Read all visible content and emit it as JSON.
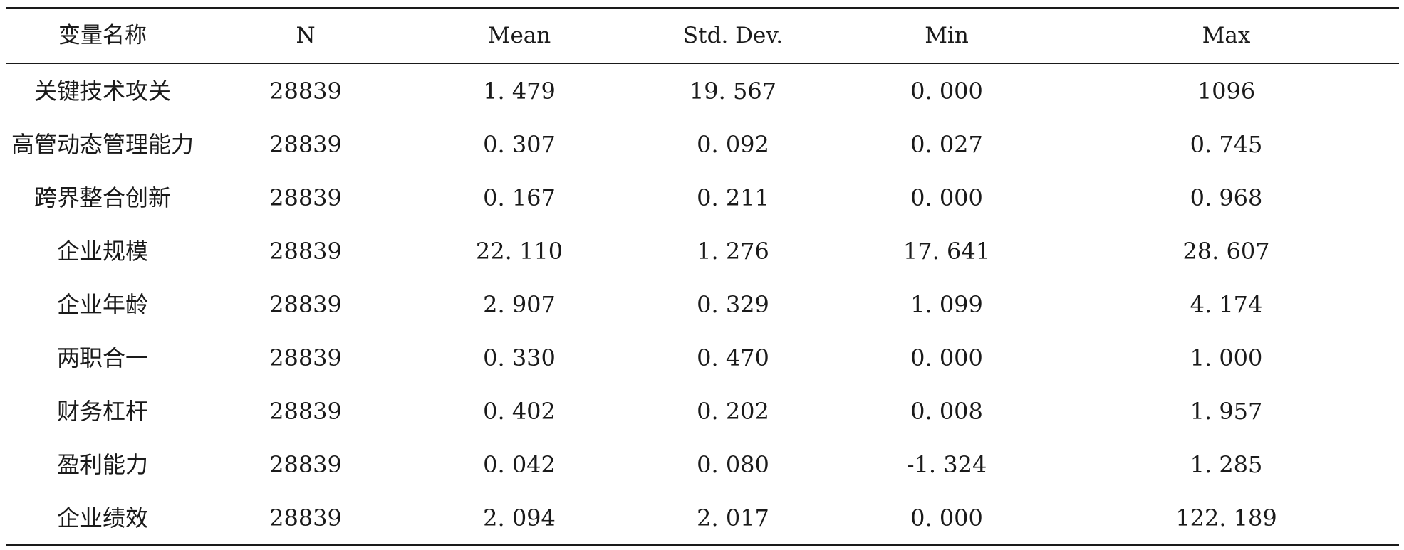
{
  "table": {
    "headers": [
      "变量名称",
      "N",
      "Mean",
      "Std. Dev.",
      "Min",
      "Max"
    ],
    "rows": [
      [
        "关键技术攻关",
        "28839",
        "1. 479",
        "19. 567",
        "0. 000",
        "1096"
      ],
      [
        "高管动态管理能力",
        "28839",
        "0. 307",
        "0. 092",
        "0. 027",
        "0. 745"
      ],
      [
        "跨界整合创新",
        "28839",
        "0. 167",
        "0. 211",
        "0. 000",
        "0. 968"
      ],
      [
        "企业规模",
        "28839",
        "22. 110",
        "1. 276",
        "17. 641",
        "28. 607"
      ],
      [
        "企业年龄",
        "28839",
        "2. 907",
        "0. 329",
        "1. 099",
        "4. 174"
      ],
      [
        "两职合一",
        "28839",
        "0. 330",
        "0. 470",
        "0. 000",
        "1. 000"
      ],
      [
        "财务杠杆",
        "28839",
        "0. 402",
        "0. 202",
        "0. 008",
        "1. 957"
      ],
      [
        "盈利能力",
        "28839",
        "0. 042",
        "0. 080",
        "-1. 324",
        "1. 285"
      ],
      [
        "企业绩效",
        "28839",
        "2. 094",
        "2. 017",
        "0. 000",
        "122. 189"
      ]
    ]
  }
}
